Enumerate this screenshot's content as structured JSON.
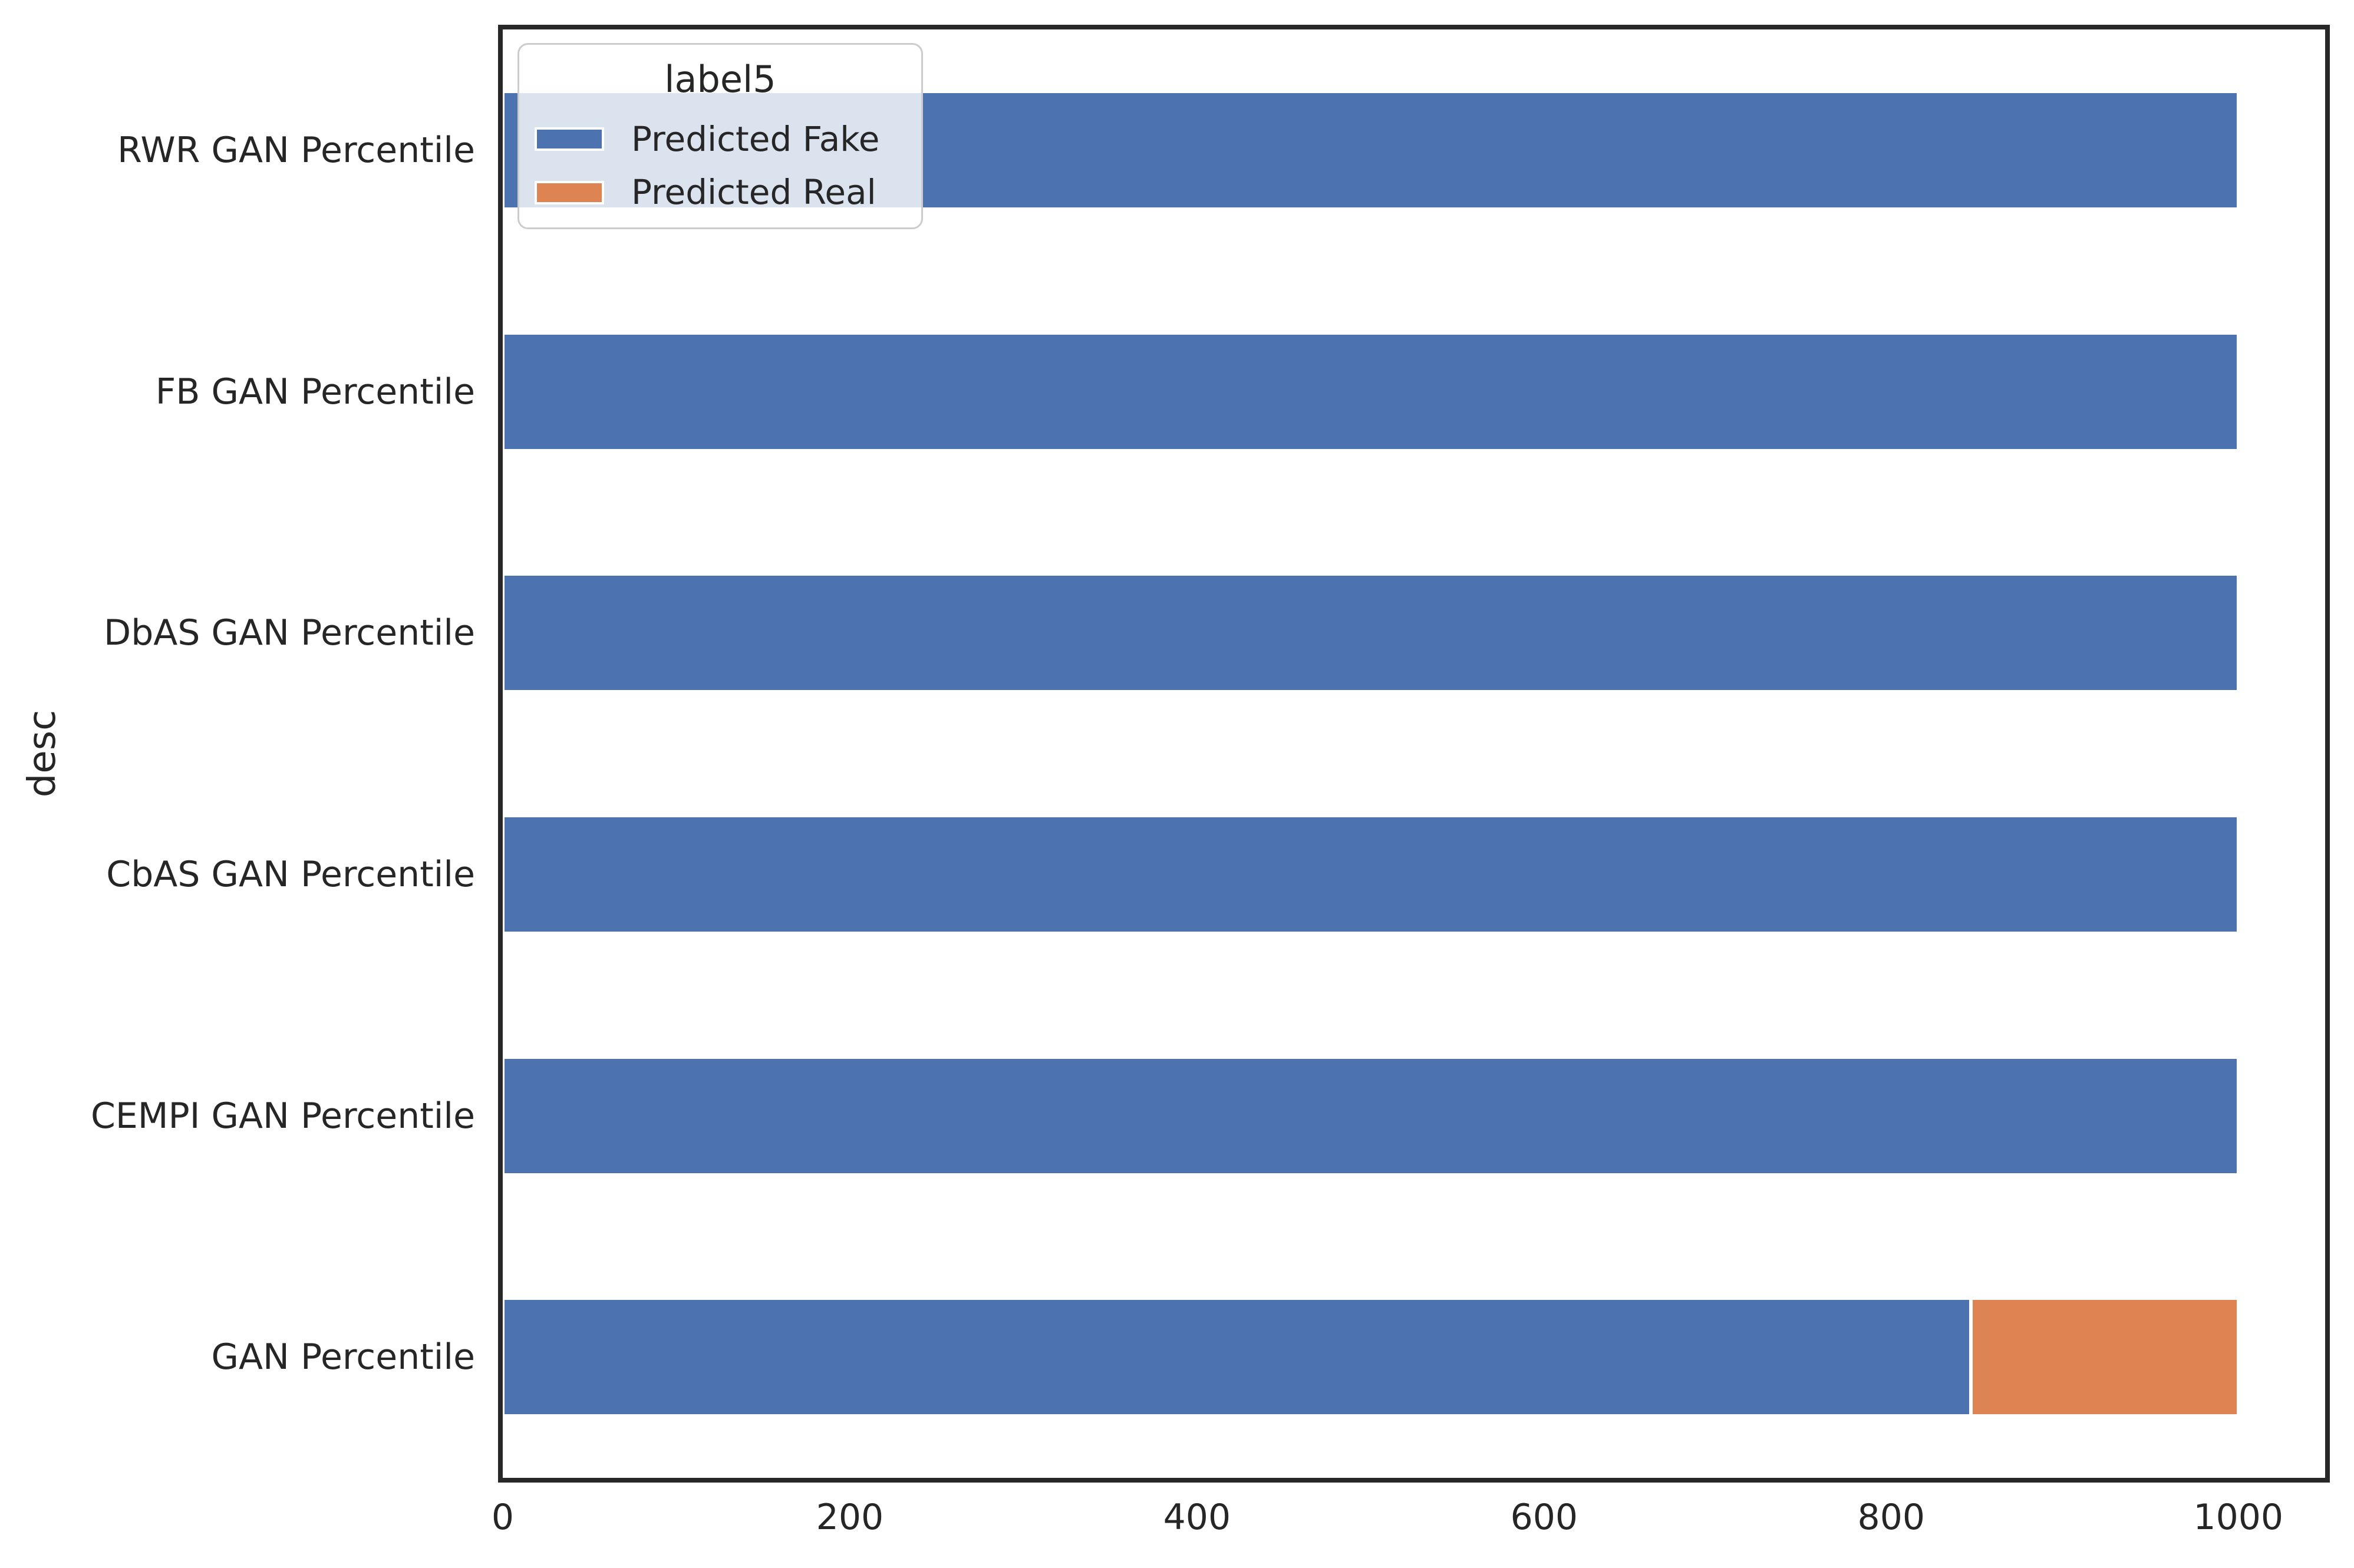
{
  "chart_data": {
    "type": "bar",
    "orientation": "horizontal",
    "stacked": true,
    "title": "",
    "xlabel": "",
    "ylabel": "desc",
    "categories": [
      "RWR GAN Percentile",
      "FB GAN Percentile",
      "DbAS GAN Percentile",
      "CbAS GAN Percentile",
      "CEMPI GAN Percentile",
      "GAN Percentile"
    ],
    "series": [
      {
        "name": "Predicted Fake",
        "color": "#4c72b0",
        "values": [
          1000,
          1000,
          1000,
          1000,
          1000,
          846
        ]
      },
      {
        "name": "Predicted Real",
        "color": "#dd8452",
        "values": [
          0,
          0,
          0,
          0,
          0,
          154
        ]
      }
    ],
    "xlim": [
      0,
      1050
    ],
    "xticks": [
      "0",
      "200",
      "400",
      "600",
      "800",
      "1000"
    ],
    "grid": false,
    "legend": {
      "title": "label5",
      "position": "upper-left"
    },
    "bar_edge_color": "#ffffff",
    "spine_color": "#282828",
    "text_color": "#262626"
  }
}
